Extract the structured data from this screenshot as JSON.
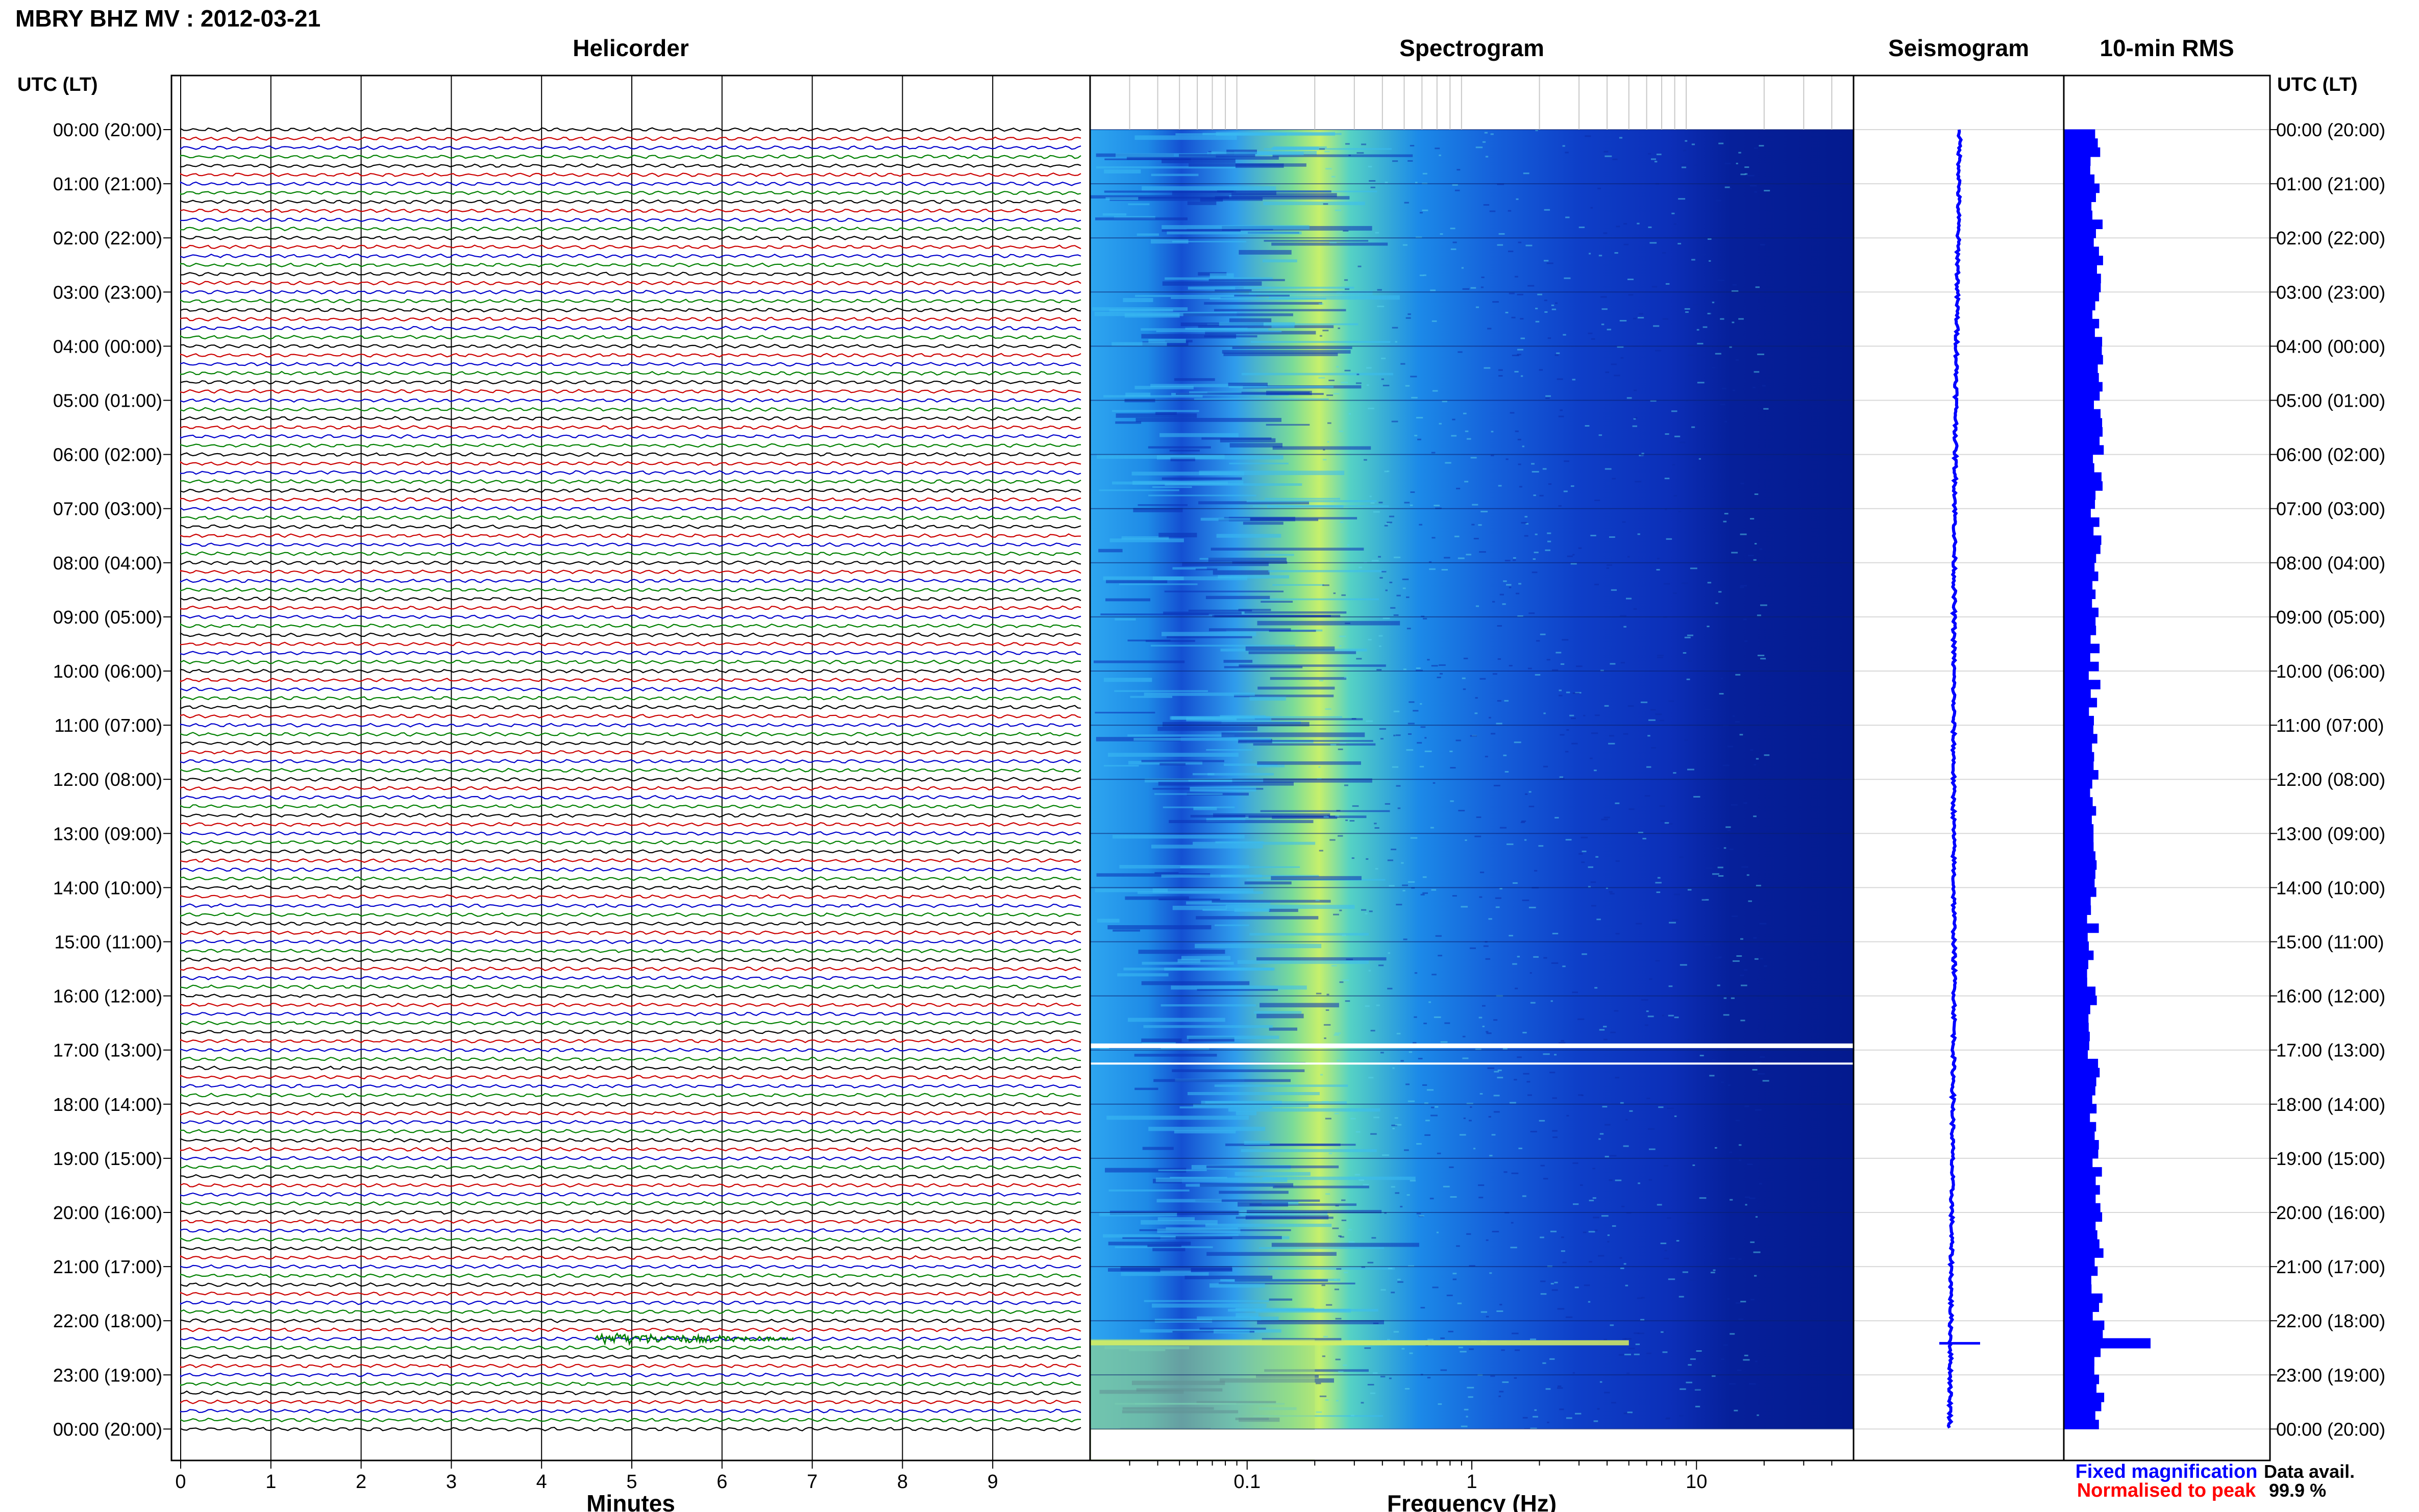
{
  "header": {
    "title": "MBRY BHZ MV : 2012-03-21"
  },
  "chart_data": {
    "type": "heatmap",
    "time_axis": {
      "label": "UTC (LT)",
      "ticks": [
        "00:00 (20:00)",
        "01:00 (21:00)",
        "02:00 (22:00)",
        "03:00 (23:00)",
        "04:00 (00:00)",
        "05:00 (01:00)",
        "06:00 (02:00)",
        "07:00 (03:00)",
        "08:00 (04:00)",
        "09:00 (05:00)",
        "10:00 (06:00)",
        "11:00 (07:00)",
        "12:00 (08:00)",
        "13:00 (09:00)",
        "14:00 (10:00)",
        "15:00 (11:00)",
        "16:00 (12:00)",
        "17:00 (13:00)",
        "18:00 (14:00)",
        "19:00 (15:00)",
        "20:00 (16:00)",
        "21:00 (17:00)",
        "22:00 (18:00)",
        "23:00 (19:00)",
        "00:00 (20:00)"
      ]
    },
    "panels": [
      {
        "name": "helicorder",
        "title": "Helicorder",
        "type": "line",
        "xlabel": "Minutes",
        "xlim": [
          0,
          10
        ],
        "xticks": [
          0,
          1,
          2,
          3,
          4,
          5,
          6,
          7,
          8,
          9
        ],
        "trace_colors": [
          "#000000",
          "#cc0000",
          "#0000cc",
          "#008000"
        ],
        "event": {
          "utc": "22:20",
          "minutes": [
            4.6,
            6.8
          ]
        }
      },
      {
        "name": "spectrogram",
        "title": "Spectrogram",
        "type": "heatmap",
        "xlabel": "Frequency (Hz)",
        "xscale": "log",
        "xlim": [
          0.02,
          50
        ],
        "xticks": [
          {
            "value": 0.1,
            "label": "0.1"
          },
          {
            "value": 1,
            "label": "1"
          },
          {
            "value": 10,
            "label": "10"
          }
        ],
        "peak_band_hz": [
          0.2,
          0.35
        ],
        "gaps_utc": [
          "16:55",
          "17:15"
        ]
      },
      {
        "name": "seismogram",
        "title": "Seismogram",
        "type": "line",
        "event_utc": "22:25"
      },
      {
        "name": "rms",
        "title": "10-min RMS",
        "type": "bar",
        "event_utc": "22:25"
      }
    ],
    "legend": [
      {
        "label": "Fixed magnification",
        "color": "#0000ff"
      },
      {
        "label": "Normalised to peak",
        "color": "#ff0000"
      }
    ],
    "data_avail": {
      "label": "Data avail.",
      "value": "99.9 %"
    }
  }
}
